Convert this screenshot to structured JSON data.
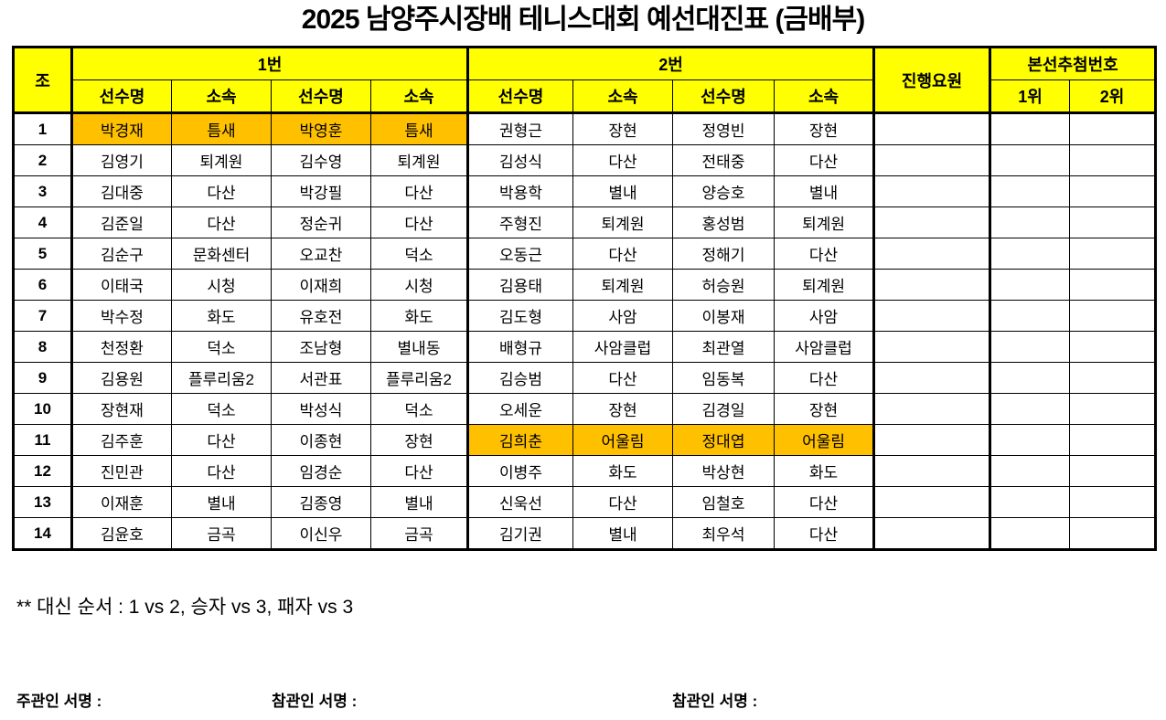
{
  "title": "2025 남양주시장배 테니스대회 예선대진표 (금배부)",
  "colors": {
    "header_bg": "#FFFF00",
    "highlight_bg": "#FFC000",
    "border": "#000000",
    "text": "#000000"
  },
  "table": {
    "group_headers": {
      "jo": "조",
      "match1": "1번",
      "match2": "2번",
      "staff": "진행요원",
      "draw": "본선추첨번호"
    },
    "sub_headers": {
      "player": "선수명",
      "club": "소속",
      "first": "1위",
      "second": "2위"
    },
    "rows": [
      {
        "no": "1",
        "cells": [
          "박경재",
          "틈새",
          "박영훈",
          "틈새",
          "권형근",
          "장현",
          "정영빈",
          "장현"
        ],
        "highlight": "match1"
      },
      {
        "no": "2",
        "cells": [
          "김영기",
          "퇴계원",
          "김수영",
          "퇴계원",
          "김성식",
          "다산",
          "전태중",
          "다산"
        ],
        "highlight": null
      },
      {
        "no": "3",
        "cells": [
          "김대중",
          "다산",
          "박강필",
          "다산",
          "박용학",
          "별내",
          "양승호",
          "별내"
        ],
        "highlight": null
      },
      {
        "no": "4",
        "cells": [
          "김준일",
          "다산",
          "정순귀",
          "다산",
          "주형진",
          "퇴계원",
          "홍성범",
          "퇴계원"
        ],
        "highlight": null
      },
      {
        "no": "5",
        "cells": [
          "김순구",
          "문화센터",
          "오교찬",
          "덕소",
          "오동근",
          "다산",
          "정해기",
          "다산"
        ],
        "highlight": null
      },
      {
        "no": "6",
        "cells": [
          "이태국",
          "시청",
          "이재희",
          "시청",
          "김용태",
          "퇴계원",
          "허승원",
          "퇴계원"
        ],
        "highlight": null
      },
      {
        "no": "7",
        "cells": [
          "박수정",
          "화도",
          "유호전",
          "화도",
          "김도형",
          "사암",
          "이봉재",
          "사암"
        ],
        "highlight": null
      },
      {
        "no": "8",
        "cells": [
          "천정환",
          "덕소",
          "조남형",
          "별내동",
          "배형규",
          "사암클럽",
          "최관열",
          "사암클럽"
        ],
        "highlight": null
      },
      {
        "no": "9",
        "cells": [
          "김용원",
          "플루리움2",
          "서관표",
          "플루리움2",
          "김승범",
          "다산",
          "임동복",
          "다산"
        ],
        "highlight": null
      },
      {
        "no": "10",
        "cells": [
          "장현재",
          "덕소",
          "박성식",
          "덕소",
          "오세운",
          "장현",
          "김경일",
          "장현"
        ],
        "highlight": null
      },
      {
        "no": "11",
        "cells": [
          "김주훈",
          "다산",
          "이종현",
          "장현",
          "김희춘",
          "어울림",
          "정대엽",
          "어울림"
        ],
        "highlight": "match2"
      },
      {
        "no": "12",
        "cells": [
          "진민관",
          "다산",
          "임경순",
          "다산",
          "이병주",
          "화도",
          "박상현",
          "화도"
        ],
        "highlight": null
      },
      {
        "no": "13",
        "cells": [
          "이재훈",
          "별내",
          "김종영",
          "별내",
          "신욱선",
          "다산",
          "임철호",
          "다산"
        ],
        "highlight": null
      },
      {
        "no": "14",
        "cells": [
          "김윤호",
          "금곡",
          "이신우",
          "금곡",
          "김기권",
          "별내",
          "최우석",
          "다산"
        ],
        "highlight": null
      }
    ]
  },
  "note": "** 대신 순서 : 1 vs 2, 승자 vs 3, 패자 vs 3",
  "signatures": [
    {
      "label": "주관인 서명 :"
    },
    {
      "label": "참관인 서명 :"
    },
    {
      "label": "참관인 서명 :"
    }
  ]
}
